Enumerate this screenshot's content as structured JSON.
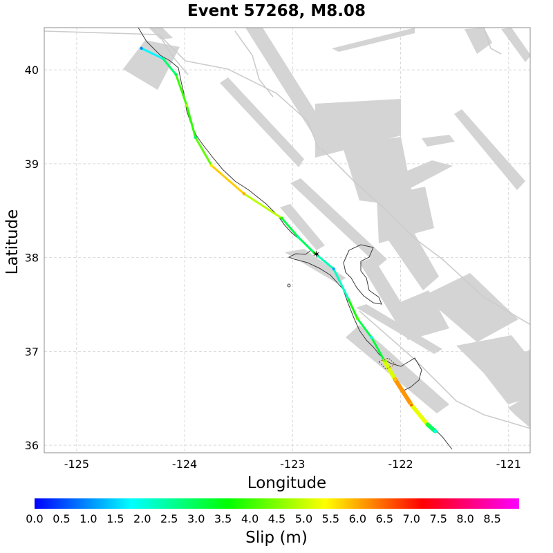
{
  "chart_data": {
    "type": "map",
    "title": "Event 57268, M8.08",
    "xlabel": "Longitude",
    "ylabel": "Latitude",
    "xlim": [
      -125.3,
      -120.8
    ],
    "ylim": [
      35.92,
      40.45
    ],
    "xticks": [
      -125,
      -124,
      -123,
      -122,
      -121
    ],
    "yticks": [
      36,
      37,
      38,
      39,
      40
    ],
    "grid": true,
    "colorbar": {
      "label": "Slip (m)",
      "min": 0.0,
      "max": 9.0,
      "ticks": [
        0.0,
        0.5,
        1.0,
        1.5,
        2.0,
        2.5,
        3.0,
        3.5,
        4.0,
        4.5,
        5.0,
        5.5,
        6.0,
        6.5,
        7.0,
        7.5,
        8.0,
        8.5
      ],
      "colormap": [
        "#0000ff",
        "#00ffff",
        "#00ff00",
        "#ffff00",
        "#ff0000",
        "#ff00ff"
      ]
    },
    "hypocenter": {
      "lon": -122.78,
      "lat": 38.03
    },
    "rupture_segments": [
      {
        "lon": -124.4,
        "lat": 40.23,
        "slip": 1.0
      },
      {
        "lon": -124.2,
        "lat": 40.12,
        "slip": 2.5
      },
      {
        "lon": -124.08,
        "lat": 39.95,
        "slip": 3.2
      },
      {
        "lon": -123.98,
        "lat": 39.62,
        "slip": 4.8
      },
      {
        "lon": -123.9,
        "lat": 39.28,
        "slip": 3.0
      },
      {
        "lon": -123.75,
        "lat": 38.98,
        "slip": 5.5
      },
      {
        "lon": -123.45,
        "lat": 38.68,
        "slip": 6.0
      },
      {
        "lon": -123.1,
        "lat": 38.42,
        "slip": 3.8
      },
      {
        "lon": -122.95,
        "lat": 38.22,
        "slip": 2.4
      },
      {
        "lon": -122.8,
        "lat": 38.05,
        "slip": 3.5
      },
      {
        "lon": -122.62,
        "lat": 37.88,
        "slip": 1.2
      },
      {
        "lon": -122.48,
        "lat": 37.55,
        "slip": 3.2
      },
      {
        "lon": -122.4,
        "lat": 37.35,
        "slip": 4.2
      },
      {
        "lon": -122.27,
        "lat": 37.15,
        "slip": 2.0
      },
      {
        "lon": -122.15,
        "lat": 36.9,
        "slip": 4.5
      },
      {
        "lon": -122.05,
        "lat": 36.7,
        "slip": 5.8
      },
      {
        "lon": -121.9,
        "lat": 36.43,
        "slip": 6.5
      },
      {
        "lon": -121.75,
        "lat": 36.22,
        "slip": 4.0
      },
      {
        "lon": -121.68,
        "lat": 36.15,
        "slip": 1.8
      }
    ]
  }
}
